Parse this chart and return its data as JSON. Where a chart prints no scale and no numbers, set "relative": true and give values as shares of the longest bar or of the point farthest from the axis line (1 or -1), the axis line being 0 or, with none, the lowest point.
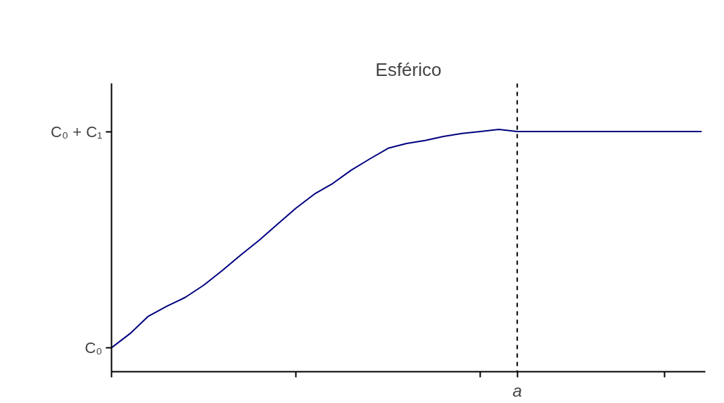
{
  "chart_data": {
    "type": "line",
    "title": "Esférico",
    "relative": true,
    "categories": [
      null,
      null,
      null,
      null,
      null,
      null,
      null,
      null,
      null,
      null,
      null,
      null,
      null,
      null,
      null,
      null,
      null,
      null,
      null,
      null,
      null,
      null,
      null,
      null,
      null,
      null,
      null,
      null,
      null,
      null,
      null,
      null,
      null
    ],
    "series": [
      {
        "color": "#000080",
        "values": [
          0.099,
          0.157,
          0.229,
          0.27,
          0.307,
          0.357,
          0.417,
          0.481,
          0.542,
          0.609,
          0.675,
          0.733,
          0.777,
          0.832,
          0.878,
          0.922,
          0.942,
          0.954,
          0.971,
          0.983,
          0.991,
          1.0,
          0.991,
          0.991,
          0.991,
          0.991,
          0.991,
          0.991,
          0.991,
          0.991,
          0.991,
          0.991,
          0.991
        ]
      }
    ],
    "annotations": [
      "C₀",
      "C₀ + C₁",
      "a"
    ],
    "grid": false,
    "marker": "none",
    "line_style": "solid"
  }
}
